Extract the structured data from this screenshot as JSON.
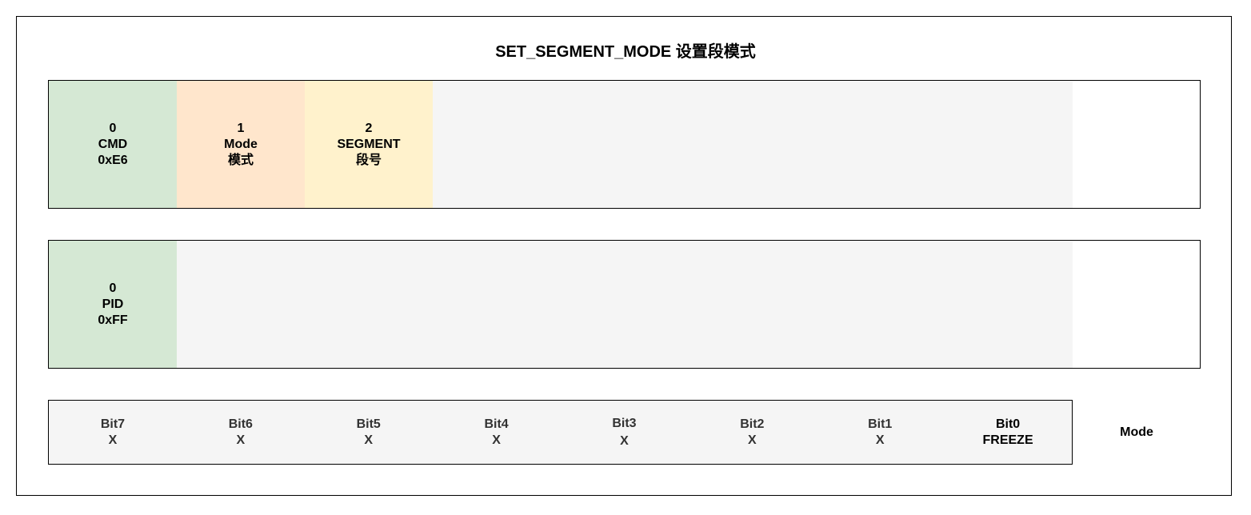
{
  "title": "SET_SEGMENT_MODE  设置段模式",
  "row1": {
    "cells": [
      {
        "index": "0",
        "name": "CMD",
        "value": "0xE6",
        "color": "#d5e8d4"
      },
      {
        "index": "1",
        "name": "Mode",
        "value": "模式",
        "color": "#ffe6cc"
      },
      {
        "index": "2",
        "name": "SEGMENT",
        "value": "段号",
        "color": "#fff2cc"
      }
    ]
  },
  "row2": {
    "cells": [
      {
        "index": "0",
        "name": "PID",
        "value": "0xFF",
        "color": "#d5e8d4"
      }
    ]
  },
  "bits": [
    {
      "name": "Bit7",
      "value": "X"
    },
    {
      "name": "Bit6",
      "value": "X"
    },
    {
      "name": "Bit5",
      "value": "X"
    },
    {
      "name": "Bit4",
      "value": "X"
    },
    {
      "name": "Bit3",
      "value": "X"
    },
    {
      "name": "Bit2",
      "value": "X"
    },
    {
      "name": "Bit1",
      "value": "X"
    },
    {
      "name": "Bit0",
      "value": "FREEZE",
      "color": "#f8cecc"
    }
  ],
  "bits_label": "Mode"
}
